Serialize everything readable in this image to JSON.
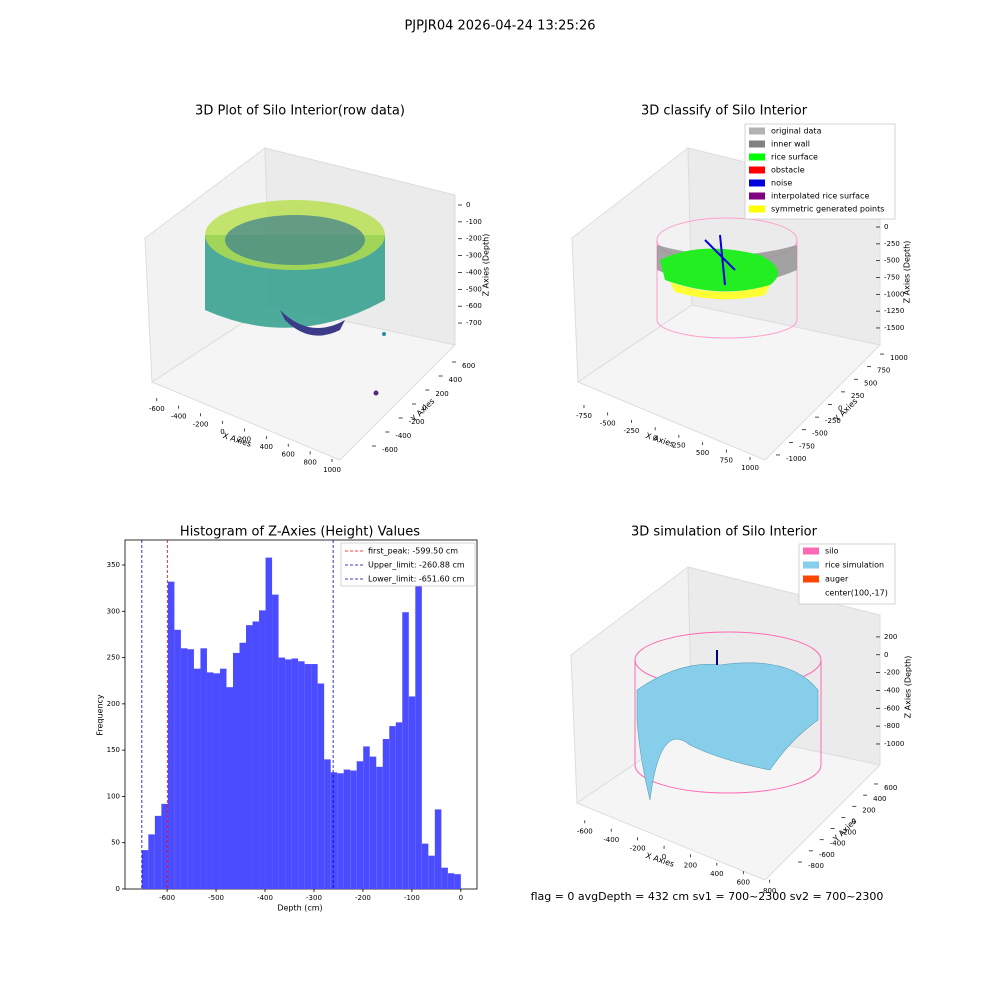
{
  "suptitle": "PJPJR04 2026-04-24 13:25:26",
  "footer": "flag = 0     avgDepth = 432 cm  sv1 = 700~2300  sv2 = 700~2300",
  "chart_data": [
    {
      "type": "scatter3d",
      "title": "3D Plot of Silo Interior(row data)",
      "xlabel": "X Axies",
      "ylabel": "Y Axies",
      "zlabel": "Z Axies (Depth)",
      "xlim": [
        -680,
        1080
      ],
      "xticks": [
        -600,
        -400,
        -200,
        0,
        200,
        400,
        600,
        800,
        1000
      ],
      "ylim": [
        -700,
        700
      ],
      "yticks": [
        -600,
        -400,
        -200,
        0,
        200,
        400,
        600
      ],
      "zlim": [
        -800,
        60
      ],
      "zticks": [
        0,
        -100,
        -200,
        -300,
        -400,
        -500,
        -600,
        -700
      ]
    },
    {
      "type": "scatter3d",
      "title": "3D classify of Silo Interior",
      "xlabel": "X Axies",
      "ylabel": "Y Axies",
      "zlabel": "Z Axies (Depth)",
      "xlim": [
        -850,
        1100
      ],
      "xticks": [
        -750,
        -500,
        -250,
        0,
        250,
        500,
        750,
        1000
      ],
      "ylim": [
        -1100,
        1100
      ],
      "yticks": [
        -1000,
        -750,
        -500,
        -250,
        0,
        250,
        500,
        750,
        1000
      ],
      "zlim": [
        -1600,
        100
      ],
      "zticks": [
        0,
        -250,
        -500,
        -750,
        -1000,
        -1250,
        -1500
      ],
      "legend": [
        {
          "name": "original data",
          "color": "#b3b3b3"
        },
        {
          "name": "inner wall",
          "color": "#808080"
        },
        {
          "name": "rice surface",
          "color": "#00ff00"
        },
        {
          "name": "obstacle",
          "color": "#ff0000"
        },
        {
          "name": "noise",
          "color": "#0000dd"
        },
        {
          "name": "interpolated rice surface",
          "color": "#800080"
        },
        {
          "name": "symmetric generated points",
          "color": "#ffff00"
        }
      ]
    },
    {
      "type": "histogram",
      "title": "Histogram of Z-Axies (Height) Values",
      "xlabel": "Depth (cm)",
      "ylabel": "Frequency",
      "color": "#4b4bff",
      "bins": [
        -651.6,
        -638.3,
        -625.0,
        -611.7,
        -598.4,
        -585.1,
        -571.8,
        -558.5,
        -545.2,
        -531.9,
        -518.6,
        -505.3,
        -492.0,
        -478.7,
        -465.4,
        -452.1,
        -438.8,
        -425.5,
        -412.2,
        -398.9,
        -385.6,
        -372.3,
        -359.0,
        -345.7,
        -332.4,
        -319.1,
        -305.8,
        -292.5,
        -279.2,
        -265.9,
        -252.6,
        -239.3,
        -226.0,
        -212.7,
        -199.4,
        -186.1,
        -172.8,
        -159.5,
        -146.2,
        -132.9,
        -119.6,
        -106.3,
        -93.0,
        -79.7,
        -66.4,
        -53.1,
        -39.8,
        -26.5,
        -13.2,
        0.0
      ],
      "values": [
        42,
        59,
        79,
        92,
        332,
        280,
        260,
        259,
        238,
        260,
        234,
        233,
        238,
        218,
        255,
        266,
        285,
        289,
        301,
        358,
        318,
        250,
        248,
        249,
        246,
        243,
        243,
        222,
        140,
        126,
        125,
        129,
        128,
        138,
        154,
        143,
        132,
        162,
        176,
        180,
        299,
        208,
        330,
        49,
        36,
        86,
        23,
        17,
        16
      ],
      "xlim": [
        -686,
        33
      ],
      "xticks": [
        -600,
        -500,
        -400,
        -300,
        -200,
        -100,
        0
      ],
      "ylim": [
        0,
        377
      ],
      "yticks": [
        0,
        50,
        100,
        150,
        200,
        250,
        300,
        350
      ],
      "vlines": [
        {
          "value": -599.5,
          "label": "first_peak: -599.50 cm",
          "color": "#ff0000"
        },
        {
          "value": -260.88,
          "label": "Upper_limit: -260.88 cm",
          "color": "#0000aa"
        },
        {
          "value": -651.6,
          "label": "Lower_limit: -651.60 cm",
          "color": "#0000aa"
        }
      ]
    },
    {
      "type": "surface3d",
      "title": "3D simulation of Silo Interior",
      "xlabel": "X Axies",
      "ylabel": "Y Axies",
      "zlabel": "Z Axies (Depth)",
      "xlim": [
        -700,
        900
      ],
      "xticks": [
        -600,
        -400,
        -200,
        0,
        200,
        400,
        600,
        800
      ],
      "ylim": [
        -900,
        700
      ],
      "yticks": [
        -800,
        -600,
        -400,
        -200,
        0,
        200,
        400,
        600
      ],
      "zlim": [
        -1100,
        300
      ],
      "zticks": [
        200,
        0,
        -200,
        -400,
        -600,
        -800,
        -1000
      ],
      "legend": [
        {
          "name": "silo",
          "color": "#ff69b4"
        },
        {
          "name": "rice simulation",
          "color": "#87ceeb"
        },
        {
          "name": "auger",
          "color": "#ff4500"
        },
        {
          "name": "center(100,-17)",
          "color": "#ffffff"
        }
      ]
    }
  ]
}
